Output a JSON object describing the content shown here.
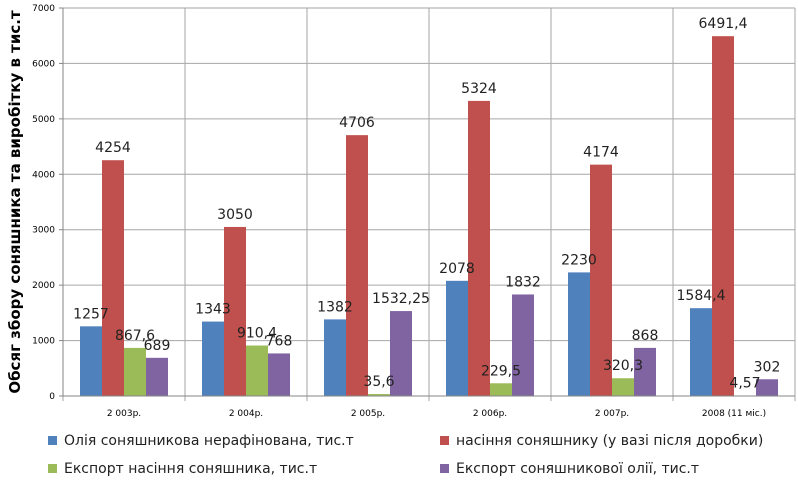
{
  "chart_data": {
    "type": "bar",
    "title": "",
    "xlabel": "",
    "ylabel": "Обсяг збору соняшника та виробітку в тис.т",
    "ylim": [
      0,
      7000
    ],
    "yticks": [
      "0",
      "1000",
      "2000",
      "3000",
      "4000",
      "5000",
      "6000",
      "7000"
    ],
    "grid": true,
    "legend_position": "bottom",
    "categories": [
      "2 003р.",
      "2 004р.",
      "2 005р.",
      "2 006р.",
      "2 007р.",
      "2008 (11 міс.)"
    ],
    "series": [
      {
        "name": "Олія соняшникова  нерафінована,  тис.т",
        "color": "#4f81bd",
        "values": [
          1257,
          1343,
          1382,
          2078,
          2230,
          1584.4
        ],
        "labels": [
          "1257",
          "1343",
          "1382",
          "2078",
          "2230",
          "1584,4"
        ]
      },
      {
        "name": "насіння соняшнику  (у вазі після доробки)",
        "color": "#c0504d",
        "values": [
          4254,
          3050,
          4706,
          5324,
          4174,
          6491.4
        ],
        "labels": [
          "4254",
          "3050",
          "4706",
          "5324",
          "4174",
          "6491,4"
        ]
      },
      {
        "name": "Експорт насіння соняшника, тис.т",
        "color": "#9bbb59",
        "values": [
          867.6,
          910.4,
          35.6,
          229.5,
          320.3,
          4.57
        ],
        "labels": [
          "867,6",
          "910,4",
          "35,6",
          "229,5",
          "320,3",
          "4,57"
        ]
      },
      {
        "name": "Експорт соняшникової олії, тис.т",
        "color": "#8064a2",
        "values": [
          689,
          768,
          1532.25,
          1832,
          868,
          302
        ],
        "labels": [
          "689",
          "768",
          "1532,25",
          "1832",
          "868",
          "302"
        ]
      }
    ]
  }
}
